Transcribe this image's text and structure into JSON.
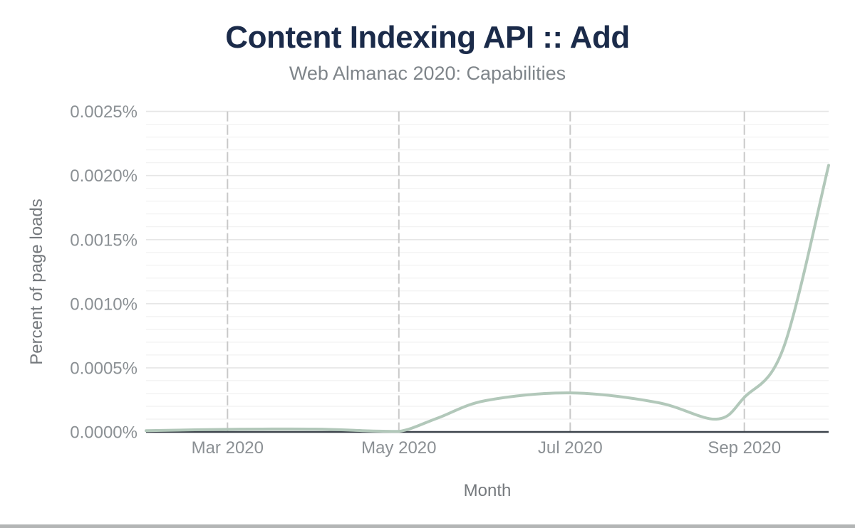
{
  "header": {
    "title": "Content Indexing API :: Add",
    "subtitle": "Web Almanac 2020: Capabilities"
  },
  "chart_data": {
    "type": "line",
    "title": "Content Indexing API :: Add",
    "subtitle": "Web Almanac 2020: Capabilities",
    "xlabel": "Month",
    "ylabel": "Percent of page loads",
    "unit": "percent of page loads",
    "ylim": [
      0,
      0.0025
    ],
    "x_domain": [
      "2020-02-01",
      "2020-10-01"
    ],
    "grid": {
      "y_minor_step": 0.0001,
      "y_major_step": 0.0005,
      "horizontal_grid": "on",
      "vertical_grid": "dashed at month ticks"
    },
    "legend": "none",
    "y_ticks": [
      {
        "value": 0.0,
        "label": "0.0000%"
      },
      {
        "value": 0.0005,
        "label": "0.0005%"
      },
      {
        "value": 0.001,
        "label": "0.0010%"
      },
      {
        "value": 0.0015,
        "label": "0.0015%"
      },
      {
        "value": 0.002,
        "label": "0.0020%"
      },
      {
        "value": 0.0025,
        "label": "0.0025%"
      }
    ],
    "x_ticks": [
      {
        "date": "2020-03-01",
        "label": "Mar 2020"
      },
      {
        "date": "2020-05-01",
        "label": "May 2020"
      },
      {
        "date": "2020-07-01",
        "label": "Jul 2020"
      },
      {
        "date": "2020-09-01",
        "label": "Sep 2020"
      }
    ],
    "series": [
      {
        "name": "Content Indexing API :: Add",
        "points": [
          {
            "date": "2020-02-01",
            "value": 1e-05
          },
          {
            "date": "2020-03-01",
            "value": 2e-05
          },
          {
            "date": "2020-04-01",
            "value": 2.2e-05
          },
          {
            "date": "2020-04-18",
            "value": 1e-05
          },
          {
            "date": "2020-05-01",
            "value": 1e-06
          },
          {
            "date": "2020-05-15",
            "value": 0.00011
          },
          {
            "date": "2020-06-01",
            "value": 0.000245
          },
          {
            "date": "2020-07-01",
            "value": 0.000305
          },
          {
            "date": "2020-08-01",
            "value": 0.00023
          },
          {
            "date": "2020-08-22",
            "value": 0.0001
          },
          {
            "date": "2020-09-01",
            "value": 0.00027
          },
          {
            "date": "2020-09-15",
            "value": 0.00066
          },
          {
            "date": "2020-10-01",
            "value": 0.00208
          }
        ]
      }
    ]
  },
  "colors": {
    "background": "#ffffff",
    "title": "#1b2b4a",
    "subtitle": "#7f858a",
    "axis_title": "#75797d",
    "tick_label": "#8b9094",
    "line": "#b2c8ba",
    "axis_line": "#3c434b",
    "grid_major": "#e6e6e6",
    "grid_minor": "#f1f1f1",
    "grid_vertical": "#c9c9c9",
    "bottom_border": "#b3b5b5"
  }
}
